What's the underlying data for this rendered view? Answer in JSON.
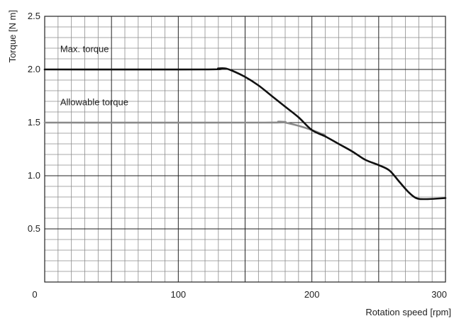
{
  "chart_data": {
    "type": "line",
    "title": "",
    "xlabel": "Rotation speed [rpm]",
    "ylabel": "Torque [N m]",
    "xlim": [
      0,
      300
    ],
    "ylim": [
      0,
      2.5
    ],
    "x_ticks": [
      0,
      100,
      200,
      300
    ],
    "x_tick_labels": [
      "0",
      "100",
      "200",
      "300"
    ],
    "y_ticks": [
      0.5,
      1.0,
      1.5,
      2.0,
      2.5
    ],
    "y_tick_labels": [
      "0.5",
      "1.0",
      "1.5",
      "2.0",
      "2.5"
    ],
    "grid": true,
    "grid_minor_x_step": 10,
    "grid_minor_y_step": 0.1,
    "legend": "none",
    "series": [
      {
        "name": "Max. torque",
        "color": "#111111",
        "points": [
          [
            0,
            2.0
          ],
          [
            120,
            2.0
          ],
          [
            130,
            2.01
          ],
          [
            135,
            2.01
          ],
          [
            140,
            1.99
          ],
          [
            150,
            1.93
          ],
          [
            160,
            1.85
          ],
          [
            170,
            1.75
          ],
          [
            180,
            1.65
          ],
          [
            190,
            1.55
          ],
          [
            200,
            1.43
          ],
          [
            210,
            1.37
          ],
          [
            220,
            1.3
          ],
          [
            230,
            1.23
          ],
          [
            240,
            1.15
          ],
          [
            250,
            1.1
          ],
          [
            258,
            1.05
          ],
          [
            265,
            0.95
          ],
          [
            272,
            0.85
          ],
          [
            278,
            0.79
          ],
          [
            285,
            0.78
          ],
          [
            300,
            0.79
          ]
        ]
      },
      {
        "name": "Allowable torque",
        "color": "#8a8a8a",
        "points": [
          [
            0,
            1.5
          ],
          [
            165,
            1.5
          ],
          [
            175,
            1.51
          ],
          [
            180,
            1.5
          ],
          [
            190,
            1.47
          ],
          [
            200,
            1.43
          ],
          [
            210,
            1.38
          ]
        ]
      }
    ],
    "annotations": [
      {
        "text": "Max. torque",
        "x": 10,
        "y": 2.19
      },
      {
        "text": "Allowable torque",
        "x": 10,
        "y": 1.69
      }
    ]
  }
}
